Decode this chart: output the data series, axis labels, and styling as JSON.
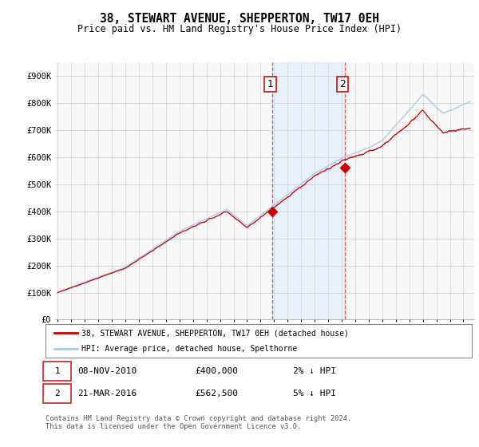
{
  "title": "38, STEWART AVENUE, SHEPPERTON, TW17 0EH",
  "subtitle": "Price paid vs. HM Land Registry's House Price Index (HPI)",
  "ylabel_ticks": [
    "£0",
    "£100K",
    "£200K",
    "£300K",
    "£400K",
    "£500K",
    "£600K",
    "£700K",
    "£800K",
    "£900K"
  ],
  "ytick_values": [
    0,
    100000,
    200000,
    300000,
    400000,
    500000,
    600000,
    700000,
    800000,
    900000
  ],
  "ylim": [
    0,
    950000
  ],
  "xlim_start": 1994.8,
  "xlim_end": 2025.8,
  "hpi_color": "#aaccee",
  "property_color": "#cc0000",
  "sale1_date": 2010.86,
  "sale1_price": 400000,
  "sale2_date": 2016.22,
  "sale2_price": 562500,
  "legend_label1": "38, STEWART AVENUE, SHEPPERTON, TW17 0EH (detached house)",
  "legend_label2": "HPI: Average price, detached house, Spelthorne",
  "table_row1": [
    "1",
    "08-NOV-2010",
    "£400,000",
    "2% ↓ HPI"
  ],
  "table_row2": [
    "2",
    "21-MAR-2016",
    "£562,500",
    "5% ↓ HPI"
  ],
  "footnote": "Contains HM Land Registry data © Crown copyright and database right 2024.\nThis data is licensed under the Open Government Licence v3.0.",
  "bg_color": "#f0f4f8",
  "chart_bg": "#f8f8f8"
}
